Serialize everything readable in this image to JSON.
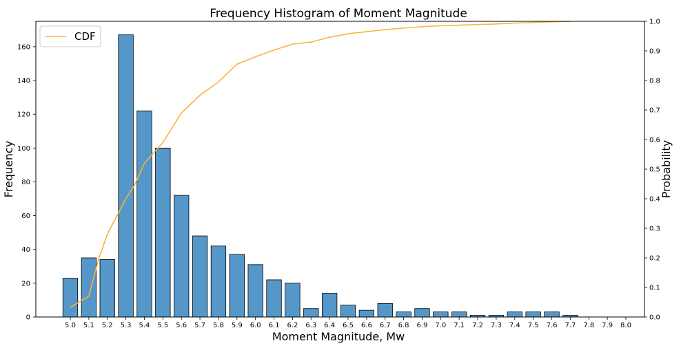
{
  "chart_data": {
    "type": "bar",
    "title": "Frequency Histogram of Moment Magnitude",
    "xlabel": "Moment Magnitude, Mw",
    "ylabel": "Frequency",
    "y2label": "Probability",
    "categories": [
      "5.0",
      "5.1",
      "5.2",
      "5.3",
      "5.4",
      "5.5",
      "5.6",
      "5.7",
      "5.8",
      "5.9",
      "6.0",
      "6.1",
      "6.2",
      "6.3",
      "6.4",
      "6.5",
      "6.6",
      "6.7",
      "6.8",
      "6.9",
      "7.0",
      "7.1",
      "7.2",
      "7.3",
      "7.4",
      "7.5",
      "7.6",
      "7.7",
      "7.8",
      "7.9",
      "8.0"
    ],
    "values": [
      23,
      35,
      34,
      167,
      122,
      100,
      72,
      48,
      42,
      37,
      31,
      22,
      20,
      5,
      14,
      7,
      4,
      8,
      3,
      5,
      3,
      3,
      1,
      1,
      3,
      3,
      3,
      1,
      0,
      0,
      0
    ],
    "ylim": [
      0,
      175
    ],
    "yticks": [
      0,
      20,
      40,
      60,
      80,
      100,
      120,
      140,
      160
    ],
    "y2lim": [
      0,
      1.0
    ],
    "y2ticks": [
      "0.0",
      "0.1",
      "0.2",
      "0.3",
      "0.4",
      "0.5",
      "0.6",
      "0.7",
      "0.8",
      "0.9",
      "1.0"
    ],
    "series": [
      {
        "name": "CDF",
        "type": "line",
        "axis": "right",
        "color": "#fbb33b",
        "x": [
          5.0,
          5.1,
          5.15,
          5.2,
          5.3,
          5.35,
          5.4,
          5.5,
          5.6,
          5.7,
          5.8,
          5.9,
          6.0,
          6.1,
          6.2,
          6.3,
          6.4,
          6.5,
          6.6,
          6.7,
          6.8,
          6.9,
          7.0,
          7.1,
          7.2,
          7.3,
          7.4,
          7.5,
          7.6,
          7.7
        ],
        "values": [
          0.033,
          0.07,
          0.19,
          0.28,
          0.4,
          0.45,
          0.52,
          0.59,
          0.69,
          0.75,
          0.795,
          0.855,
          0.88,
          0.903,
          0.923,
          0.93,
          0.946,
          0.958,
          0.965,
          0.972,
          0.977,
          0.982,
          0.985,
          0.987,
          0.989,
          0.991,
          0.994,
          0.996,
          0.998,
          1.0
        ]
      }
    ],
    "bar_color": "#5597c9",
    "bar_edge_color": "#000000",
    "legend": {
      "placement": "top-left",
      "entries": [
        "CDF"
      ]
    },
    "grid": false
  }
}
